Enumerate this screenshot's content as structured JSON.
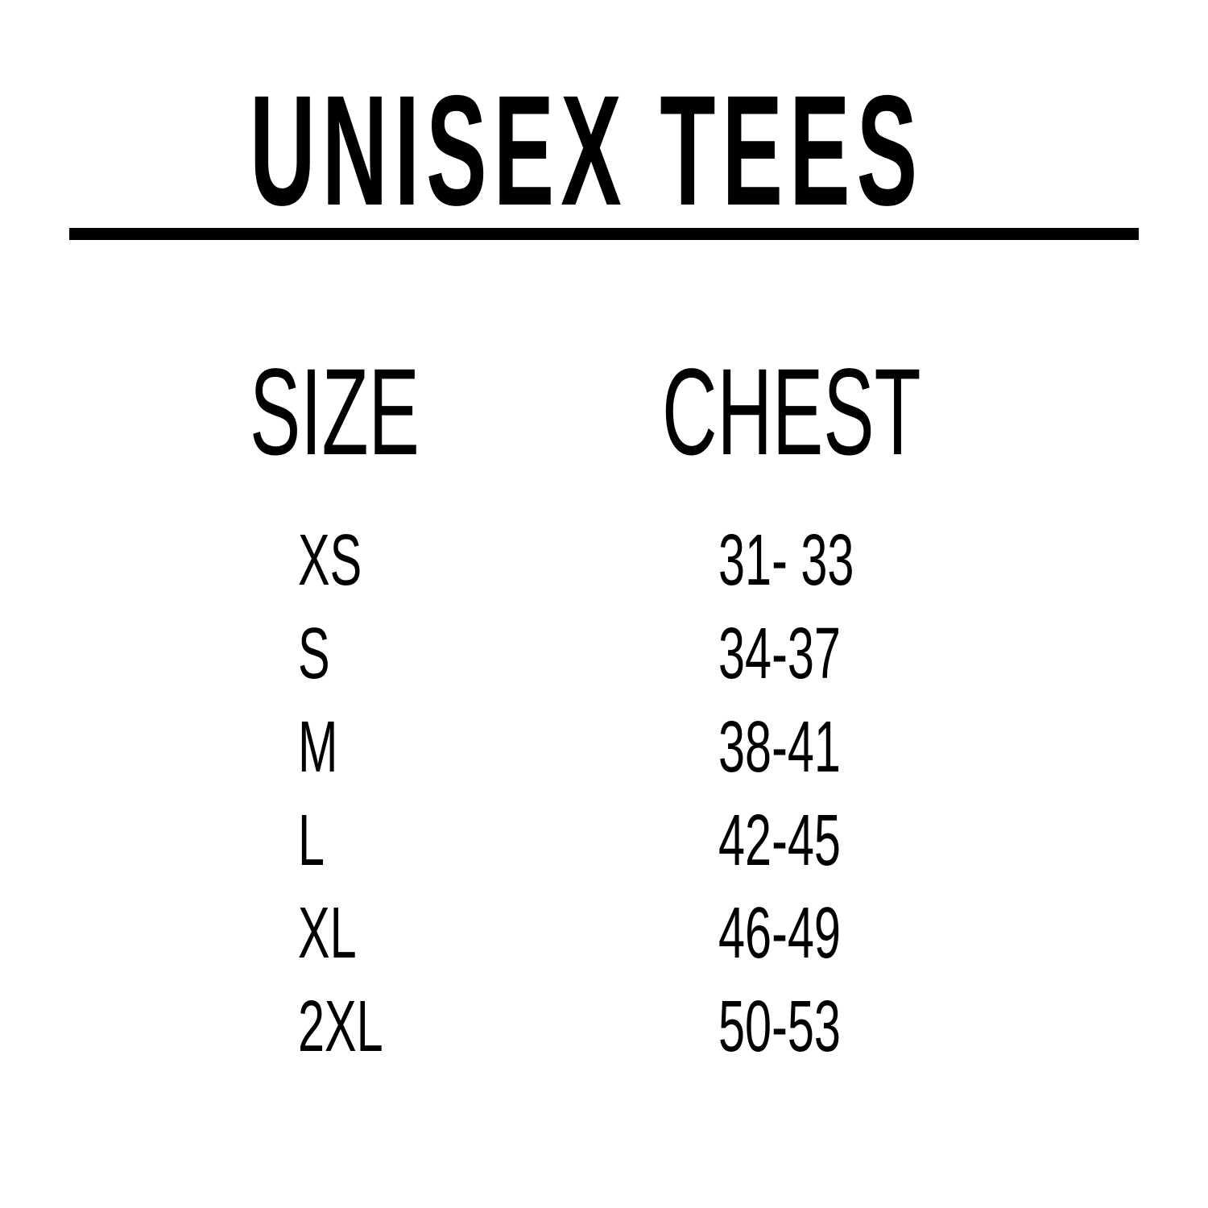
{
  "title": "UNISEX TEES",
  "headers": {
    "size": "SIZE",
    "chest": "CHEST"
  },
  "rows": [
    {
      "size": "XS",
      "chest": "31- 33"
    },
    {
      "size": "S",
      "chest": "34-37"
    },
    {
      "size": "M",
      "chest": "38-41"
    },
    {
      "size": "L",
      "chest": "42-45"
    },
    {
      "size": "XL",
      "chest": "46-49"
    },
    {
      "size": "2XL",
      "chest": "50-53"
    }
  ]
}
